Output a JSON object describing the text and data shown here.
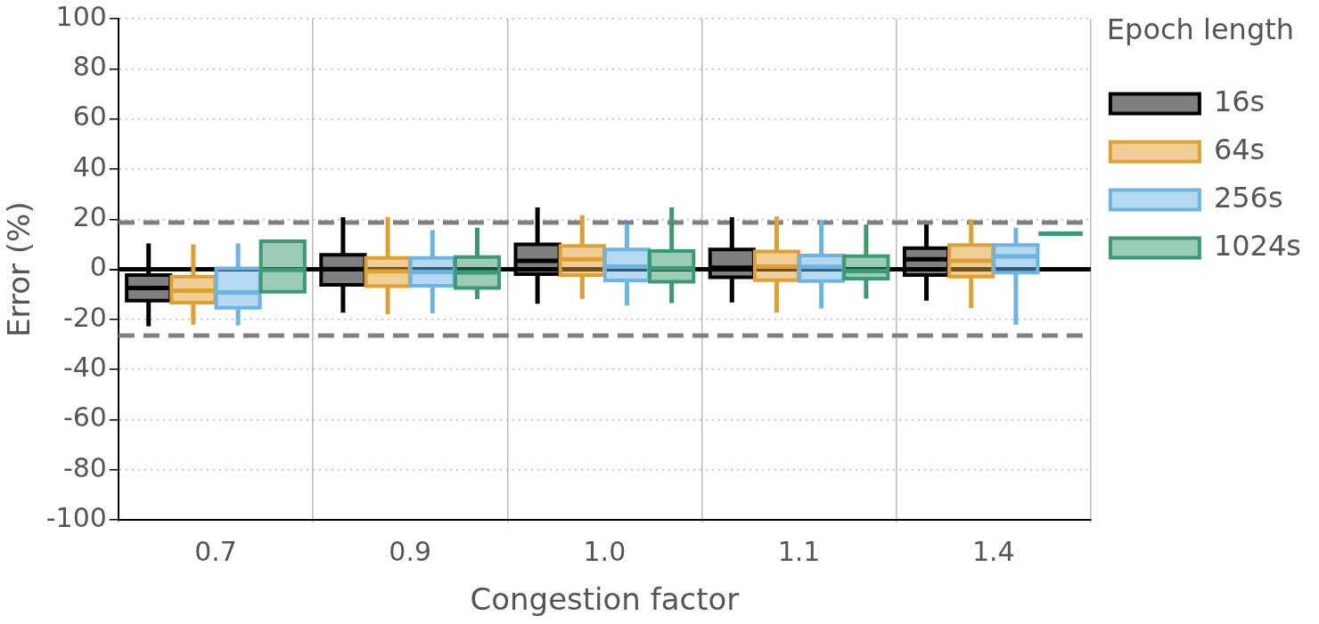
{
  "chart_data": {
    "type": "box",
    "xlabel": "Congestion factor",
    "ylabel": "Error (%)",
    "legend_title": "Epoch length",
    "categories": [
      "0.7",
      "0.9",
      "1.0",
      "1.1",
      "1.4"
    ],
    "ylim": [
      -100,
      100
    ],
    "yticks": [
      -100,
      -80,
      -60,
      -40,
      -20,
      0,
      20,
      40,
      60,
      80,
      100
    ],
    "grid": true,
    "legend": "right",
    "ref_lines": [
      {
        "axis": "y",
        "value": 0,
        "color": "#000000",
        "line_style": "solid"
      },
      {
        "axis": "y",
        "value": 18.7,
        "color": "#808080",
        "line_style": "dashed"
      },
      {
        "axis": "y",
        "value": -26.4,
        "color": "#808080",
        "line_style": "dashed"
      }
    ],
    "series": [
      {
        "name": "16s",
        "color": "#000000",
        "boxes": [
          {
            "low": -22.7,
            "q1": -12.5,
            "median": -7.4,
            "q3": -2.3,
            "high": 10.3
          },
          {
            "low": -17.3,
            "q1": -6.2,
            "median": 0.1,
            "q3": 5.8,
            "high": 20.8
          },
          {
            "low": -13.7,
            "q1": -1.9,
            "median": 3.4,
            "q3": 10,
            "high": 24.7
          },
          {
            "low": -13.2,
            "q1": -3.2,
            "median": 0.7,
            "q3": 7.9,
            "high": 20.8
          },
          {
            "low": -12.5,
            "q1": -2.3,
            "median": 4,
            "q3": 8.5,
            "high": 17.9
          }
        ]
      },
      {
        "name": "64s",
        "color": "#e0a030",
        "boxes": [
          {
            "low": -22.1,
            "q1": -13.3,
            "median": -8.5,
            "q3": -2.9,
            "high": 10
          },
          {
            "low": -17.9,
            "q1": -6.7,
            "median": -0.8,
            "q3": 4.6,
            "high": 20.9
          },
          {
            "low": -11.8,
            "q1": -2.3,
            "median": 4,
            "q3": 9.4,
            "high": 21.6
          },
          {
            "low": -17.3,
            "q1": -4.3,
            "median": 1.1,
            "q3": 7.1,
            "high": 21.1
          },
          {
            "low": -15.5,
            "q1": -2.9,
            "median": 3.4,
            "q3": 9.7,
            "high": 19.9
          }
        ]
      },
      {
        "name": "256s",
        "color": "#6cb4e4",
        "boxes": [
          {
            "low": -22.3,
            "q1": -15.3,
            "median": -9.2,
            "q3": 0.4,
            "high": 10.3
          },
          {
            "low": -17.5,
            "q1": -6.5,
            "median": -1,
            "q3": 4.6,
            "high": 15.7
          },
          {
            "low": -14.4,
            "q1": -4.4,
            "median": 1.1,
            "q3": 7.9,
            "high": 18.1
          },
          {
            "low": -15.6,
            "q1": -4.7,
            "median": 1,
            "q3": 5.5,
            "high": 19.6
          },
          {
            "low": -22.1,
            "q1": -1.3,
            "median": 5.2,
            "q3": 9.7,
            "high": 16.6
          }
        ]
      },
      {
        "name": "1024s",
        "color": "#3a9a70",
        "boxes": [
          {
            "low": -8.9,
            "q1": -8.9,
            "median": -0.2,
            "q3": 11.2,
            "high": 11.2
          },
          {
            "low": -11.9,
            "q1": -7.4,
            "median": -1.2,
            "q3": 4.9,
            "high": 16.6
          },
          {
            "low": -13.5,
            "q1": -4.9,
            "median": 0.4,
            "q3": 7.3,
            "high": 24.7
          },
          {
            "low": -11.7,
            "q1": -3.7,
            "median": -0.7,
            "q3": 5.3,
            "high": 17.9
          },
          {
            "low": 14.2,
            "q1": 14.2,
            "median": 14.2,
            "q3": 14.2,
            "high": 14.2
          }
        ]
      }
    ]
  }
}
